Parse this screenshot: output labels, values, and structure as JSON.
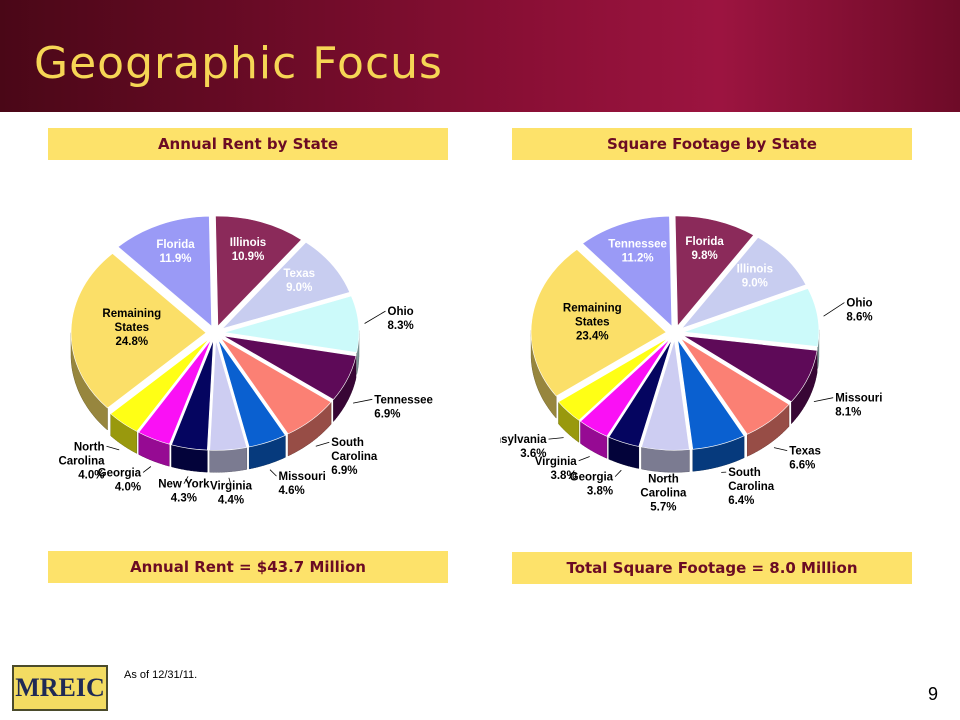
{
  "title": "Geographic Focus",
  "footnote": "As of 12/31/11.",
  "page_number": "9",
  "logo_text": "MREIC",
  "colors": {
    "header_dark": "#4a0717",
    "header_mid": "#8a0f35",
    "title_text": "#f6d655",
    "band": "#fde26a"
  },
  "chart_data": [
    {
      "type": "pie",
      "title": "Annual Rent by State",
      "total_label": "Annual Rent = $43.7 Million",
      "slices": [
        {
          "name": "Illinois",
          "label": [
            "Illinois"
          ],
          "value": 10.9,
          "value_label": "10.9%",
          "color": "#8b2a5a",
          "text_color": "#ffffff"
        },
        {
          "name": "Texas",
          "label": [
            "Texas"
          ],
          "value": 9.0,
          "value_label": "9.0%",
          "color": "#c8cdf0",
          "text_color": "#ffffff"
        },
        {
          "name": "Ohio",
          "label": [
            "Ohio"
          ],
          "value": 8.3,
          "value_label": "8.3%",
          "color": "#ccfafa",
          "text_color": "#000000"
        },
        {
          "name": "Tennessee",
          "label": [
            "Tennessee"
          ],
          "value": 6.9,
          "value_label": "6.9%",
          "color": "#5e0a58",
          "text_color": "#000000"
        },
        {
          "name": "South Carolina",
          "label": [
            "South",
            "Carolina"
          ],
          "value": 6.9,
          "value_label": "6.9%",
          "color": "#fb8074",
          "text_color": "#000000"
        },
        {
          "name": "Missouri",
          "label": [
            "Missouri"
          ],
          "value": 4.6,
          "value_label": "4.6%",
          "color": "#0a60d0",
          "text_color": "#000000"
        },
        {
          "name": "Virginia",
          "label": [
            "Virginia"
          ],
          "value": 4.4,
          "value_label": "4.4%",
          "color": "#cdcdf2",
          "text_color": "#000000"
        },
        {
          "name": "New York",
          "label": [
            "New York"
          ],
          "value": 4.3,
          "value_label": "4.3%",
          "color": "#050560",
          "text_color": "#000000"
        },
        {
          "name": "Georgia",
          "label": [
            "Georgia"
          ],
          "value": 4.0,
          "value_label": "4.0%",
          "color": "#fa10f5",
          "text_color": "#000000"
        },
        {
          "name": "North Carolina",
          "label": [
            "North",
            "Carolina"
          ],
          "value": 4.0,
          "value_label": "4.0%",
          "color": "#ffff15",
          "text_color": "#000000"
        },
        {
          "name": "Remaining States",
          "label": [
            "Remaining",
            "States"
          ],
          "value": 24.8,
          "value_label": "24.8%",
          "color": "#fbdf68",
          "text_color": "#000000"
        },
        {
          "name": "Florida",
          "label": [
            "Florida"
          ],
          "value": 11.9,
          "value_label": "11.9%",
          "color": "#9a9af6",
          "text_color": "#ffffff"
        }
      ]
    },
    {
      "type": "pie",
      "title": "Square Footage by State",
      "total_label": "Total Square Footage = 8.0 Million",
      "slices": [
        {
          "name": "Florida",
          "label": [
            "Florida"
          ],
          "value": 9.8,
          "value_label": "9.8%",
          "color": "#8b2a5a",
          "text_color": "#ffffff"
        },
        {
          "name": "Illinois",
          "label": [
            "Illinois"
          ],
          "value": 9.0,
          "value_label": "9.0%",
          "color": "#c8cdf0",
          "text_color": "#ffffff"
        },
        {
          "name": "Ohio",
          "label": [
            "Ohio"
          ],
          "value": 8.6,
          "value_label": "8.6%",
          "color": "#ccfafa",
          "text_color": "#000000"
        },
        {
          "name": "Missouri",
          "label": [
            "Missouri"
          ],
          "value": 8.1,
          "value_label": "8.1%",
          "color": "#5e0a58",
          "text_color": "#000000"
        },
        {
          "name": "Texas",
          "label": [
            "Texas"
          ],
          "value": 6.6,
          "value_label": "6.6%",
          "color": "#fb8074",
          "text_color": "#000000"
        },
        {
          "name": "South Carolina",
          "label": [
            "South",
            "Carolina"
          ],
          "value": 6.4,
          "value_label": "6.4%",
          "color": "#0a60d0",
          "text_color": "#000000"
        },
        {
          "name": "North Carolina",
          "label": [
            "North",
            "Carolina"
          ],
          "value": 5.7,
          "value_label": "5.7%",
          "color": "#cdcdf2",
          "text_color": "#000000"
        },
        {
          "name": "Georgia",
          "label": [
            "Georgia"
          ],
          "value": 3.8,
          "value_label": "3.8%",
          "color": "#050560",
          "text_color": "#000000"
        },
        {
          "name": "Virginia",
          "label": [
            "Virginia"
          ],
          "value": 3.8,
          "value_label": "3.8%",
          "color": "#fa10f5",
          "text_color": "#000000"
        },
        {
          "name": "Pennsylvania",
          "label": [
            "Pennsylvania"
          ],
          "value": 3.6,
          "value_label": "3.6%",
          "color": "#ffff15",
          "text_color": "#000000"
        },
        {
          "name": "Remaining States",
          "label": [
            "Remaining",
            "States"
          ],
          "value": 23.4,
          "value_label": "23.4%",
          "color": "#fbdf68",
          "text_color": "#000000"
        },
        {
          "name": "Tennessee",
          "label": [
            "Tennessee"
          ],
          "value": 11.2,
          "value_label": "11.2%",
          "color": "#9a9af6",
          "text_color": "#ffffff"
        }
      ]
    }
  ]
}
